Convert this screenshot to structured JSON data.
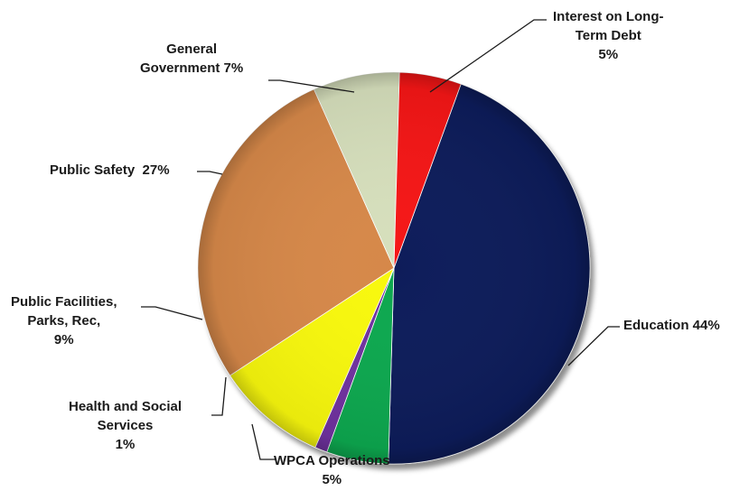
{
  "chart_data": {
    "type": "pie",
    "slices": [
      {
        "name": "Education",
        "label": "Education 44%",
        "value": 44,
        "color": "#0b1f5a"
      },
      {
        "name": "WPCA Operations",
        "label": "WPCA Operations\n5%",
        "value": 5,
        "color": "#0aa84f"
      },
      {
        "name": "Health and Social Services",
        "label": "Health and Social\nServices\n1%",
        "value": 1,
        "color": "#7030a0"
      },
      {
        "name": "Public Facilities, Parks, Rec",
        "label": "Public Facilities,\nParks, Rec,\n9%",
        "value": 9,
        "color": "#f8f80a"
      },
      {
        "name": "Public Safety",
        "label": "Public Safety  27%",
        "value": 27,
        "color": "#d6884a"
      },
      {
        "name": "General Government",
        "label": "General\nGovernment 7%",
        "value": 7,
        "color": "#d6dfbc"
      },
      {
        "name": "Interest on Long-Term Debt",
        "label": "Interest on Long-\nTerm Debt\n5%",
        "value": 5,
        "color": "#f51414"
      }
    ]
  }
}
